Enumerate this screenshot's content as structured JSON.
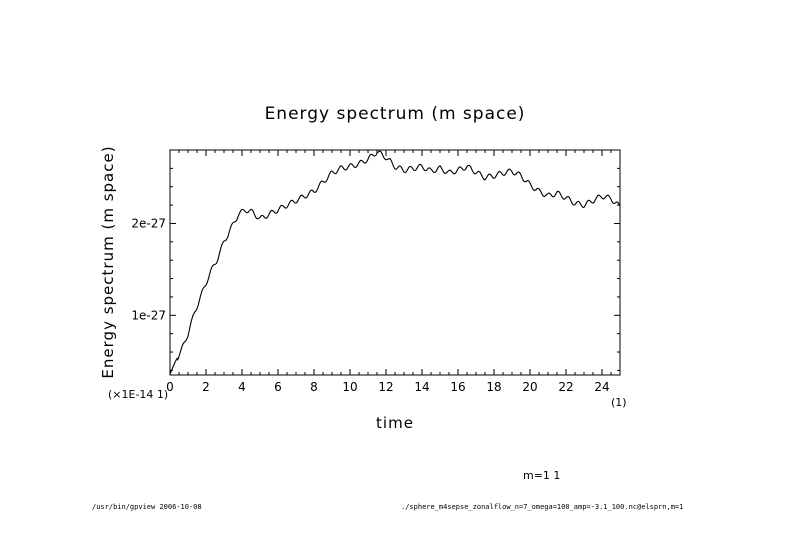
{
  "chart_data": {
    "type": "line",
    "title": "Energy spectrum (m space)",
    "xlabel": "time",
    "ylabel": "Energy spectrum (m space)",
    "xlim": [
      0,
      25
    ],
    "ylim": [
      3.5e-28,
      2.8e-27
    ],
    "x_ticks": [
      0,
      2,
      4,
      6,
      8,
      10,
      12,
      14,
      16,
      18,
      20,
      22,
      24
    ],
    "x_tick_labels": [
      "0",
      "2",
      "4",
      "6",
      "8",
      "10",
      "12",
      "14",
      "16",
      "18",
      "20",
      "22",
      "24"
    ],
    "y_ticks": [
      1e-27,
      2e-27
    ],
    "y_tick_labels": [
      "1e-27",
      "2e-27"
    ],
    "x_multiplier_label": "(×1E-14 1)",
    "x_unit_label": "(1)",
    "series": [
      {
        "name": "m=1 1",
        "x": [
          0,
          0.3,
          0.6,
          1.0,
          1.4,
          1.8,
          2.2,
          2.6,
          3.0,
          3.4,
          3.8,
          4.2,
          4.6,
          5.0,
          5.5,
          6.0,
          6.5,
          7.0,
          7.5,
          8.0,
          8.5,
          9.0,
          9.5,
          10.0,
          10.5,
          11.0,
          11.5,
          12.0,
          12.5,
          13.0,
          13.5,
          14.0,
          14.5,
          15.0,
          15.5,
          16.0,
          16.5,
          17.0,
          17.5,
          18.0,
          18.5,
          19.0,
          19.5,
          20.0,
          20.5,
          21.0,
          21.5,
          22.0,
          22.5,
          23.0,
          23.5,
          24.0,
          24.5,
          25.0
        ],
        "y": [
          3.6e-28,
          5e-28,
          6e-28,
          8e-28,
          1.05e-27,
          1.25e-27,
          1.45e-27,
          1.6e-27,
          1.8e-27,
          1.95e-27,
          2.1e-27,
          2.15e-27,
          2.12e-27,
          2.05e-27,
          2.1e-27,
          2.15e-27,
          2.2e-27,
          2.25e-27,
          2.3e-27,
          2.35e-27,
          2.45e-27,
          2.55e-27,
          2.6e-27,
          2.62e-27,
          2.65e-27,
          2.7e-27,
          2.78e-27,
          2.72e-27,
          2.62e-27,
          2.58e-27,
          2.6e-27,
          2.62e-27,
          2.57e-27,
          2.6e-27,
          2.55e-27,
          2.58e-27,
          2.62e-27,
          2.56e-27,
          2.5e-27,
          2.52e-27,
          2.55e-27,
          2.57e-27,
          2.52e-27,
          2.42e-27,
          2.35e-27,
          2.3e-27,
          2.33e-27,
          2.28e-27,
          2.22e-27,
          2.2e-27,
          2.25e-27,
          2.3e-27,
          2.27e-27,
          2.18e-27
        ]
      }
    ]
  },
  "legend_text": "m=1 1",
  "footer": {
    "left": "/usr/bin/gpview 2006-10-08",
    "right": "./sphere_m4sepse_zonalflow_n=7_omega=100_amp=-3.1_100.nc@elsprn,m=1"
  }
}
